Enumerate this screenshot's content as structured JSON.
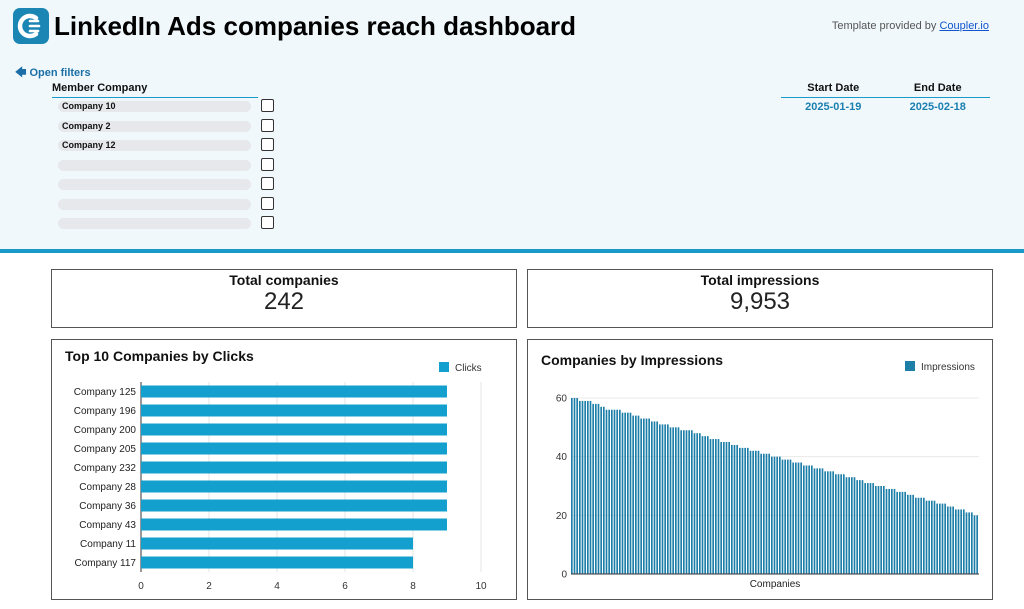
{
  "header": {
    "title": "LinkedIn Ads companies reach dashboard",
    "credit_prefix": "Template provided by ",
    "credit_link": "Coupler.io",
    "open_filters": "Open filters",
    "logo_icon": "coupler-logo-icon"
  },
  "filters": {
    "member_company": {
      "label": "Member Company",
      "items": [
        "Company 10",
        "Company 2",
        "Company 12",
        "",
        "",
        "",
        ""
      ]
    },
    "start_date": {
      "label": "Start Date",
      "value": "2025-01-19"
    },
    "end_date": {
      "label": "End Date",
      "value": "2025-02-18"
    }
  },
  "kpis": {
    "total_companies": {
      "label": "Total companies",
      "value": "242"
    },
    "total_impressions": {
      "label": "Total impressions",
      "value": "9,953"
    }
  },
  "colors": {
    "accent": "#1a9ac9",
    "bar_clicks": "#13a0cf",
    "bar_impressions": "#1d7ea8",
    "header_bg": "#f0f8fc"
  },
  "chart_data": [
    {
      "type": "bar",
      "orientation": "horizontal",
      "title": "Top 10 Companies by Clicks",
      "categories": [
        "Company 125",
        "Company 196",
        "Company 200",
        "Company 205",
        "Company 232",
        "Company 28",
        "Company 36",
        "Company 43",
        "Company 11",
        "Company 117"
      ],
      "series": [
        {
          "name": "Clicks",
          "values": [
            9,
            9,
            9,
            9,
            9,
            9,
            9,
            9,
            8,
            8
          ]
        }
      ],
      "xlim": [
        0,
        10
      ],
      "xticks": [
        0,
        2,
        4,
        6,
        8,
        10
      ],
      "grid": true,
      "legend": "top-right"
    },
    {
      "type": "bar",
      "title": "Companies by Impressions",
      "xlabel": "Companies",
      "series": [
        {
          "name": "Impressions",
          "values": [
            60,
            60,
            60,
            59,
            59,
            59,
            59,
            59,
            58,
            58,
            58,
            57,
            57,
            56,
            56,
            56,
            56,
            56,
            56,
            55,
            55,
            55,
            55,
            54,
            54,
            54,
            53,
            53,
            53,
            53,
            52,
            52,
            52,
            51,
            51,
            51,
            51,
            50,
            50,
            50,
            50,
            49,
            49,
            49,
            49,
            49,
            48,
            48,
            48,
            47,
            47,
            47,
            46,
            46,
            46,
            46,
            45,
            45,
            45,
            45,
            44,
            44,
            44,
            43,
            43,
            43,
            43,
            42,
            42,
            42,
            42,
            41,
            41,
            41,
            41,
            40,
            40,
            40,
            40,
            39,
            39,
            39,
            39,
            38,
            38,
            38,
            38,
            37,
            37,
            37,
            37,
            36,
            36,
            36,
            36,
            35,
            35,
            35,
            35,
            34,
            34,
            34,
            34,
            33,
            33,
            33,
            33,
            32,
            32,
            32,
            31,
            31,
            31,
            31,
            30,
            30,
            30,
            30,
            29,
            29,
            29,
            29,
            28,
            28,
            28,
            28,
            27,
            27,
            27,
            26,
            26,
            26,
            26,
            25,
            25,
            25,
            25,
            24,
            24,
            24,
            24,
            23,
            23,
            23,
            22,
            22,
            22,
            22,
            21,
            21,
            21,
            20,
            20
          ]
        }
      ],
      "ylim": [
        0,
        60
      ],
      "yticks": [
        0,
        20,
        40,
        60
      ],
      "grid": true,
      "legend": "top-right"
    }
  ]
}
